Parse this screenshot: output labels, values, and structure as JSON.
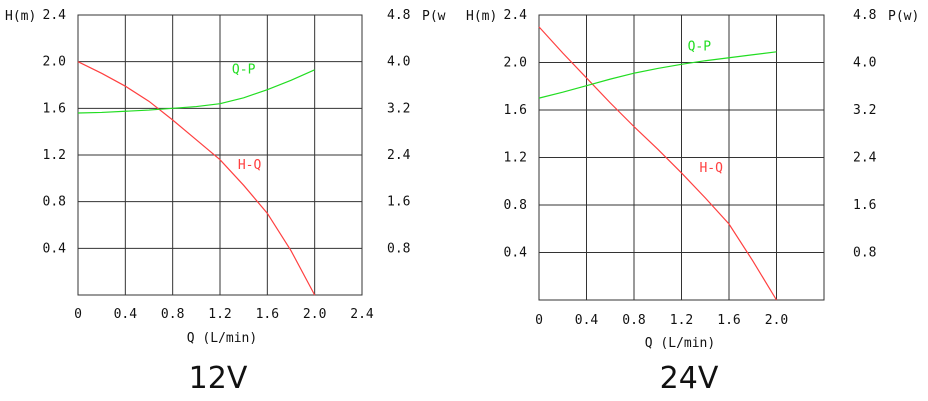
{
  "chart_data": [
    {
      "type": "line",
      "caption": "12V",
      "ylabel_left": "H(m)",
      "ylabel_right": "P(w",
      "xlabel": "Q (L/min)",
      "xlim": [
        0,
        2.4
      ],
      "ylim_left": [
        0,
        2.4
      ],
      "ylim_right": [
        0,
        4.8
      ],
      "x_ticks": [
        "0",
        "0.4",
        "0.8",
        "1.2",
        "1.6",
        "2.0",
        "2.4"
      ],
      "y_left_ticks": [
        "0.4",
        "0.8",
        "1.2",
        "1.6",
        "2.0",
        "2.4"
      ],
      "y_right_ticks": [
        "0.8",
        "1.6",
        "2.4",
        "3.2",
        "4.0",
        "4.8"
      ],
      "grid": true,
      "series": [
        {
          "name": "H-Q",
          "axis": "left",
          "color": "#ff4040",
          "x": [
            0,
            0.2,
            0.4,
            0.6,
            0.8,
            1.0,
            1.2,
            1.4,
            1.6,
            1.8,
            2.0
          ],
          "y": [
            2.0,
            1.9,
            1.79,
            1.66,
            1.5,
            1.33,
            1.16,
            0.94,
            0.7,
            0.38,
            0.0
          ]
        },
        {
          "name": "Q-P",
          "axis": "right",
          "color": "#22dd22",
          "x": [
            0,
            0.2,
            0.4,
            0.6,
            0.8,
            1.0,
            1.2,
            1.4,
            1.6,
            1.8,
            2.0
          ],
          "y": [
            3.12,
            3.13,
            3.15,
            3.17,
            3.2,
            3.23,
            3.28,
            3.38,
            3.52,
            3.68,
            3.86
          ]
        }
      ]
    },
    {
      "type": "line",
      "caption": "24V",
      "ylabel_left": "H(m)",
      "ylabel_right": "P(w)",
      "xlabel": "Q (L/min)",
      "xlim": [
        0,
        2.4
      ],
      "ylim_left": [
        0,
        2.4
      ],
      "ylim_right": [
        0,
        4.8
      ],
      "x_ticks": [
        "0",
        "0.4",
        "0.8",
        "1.2",
        "1.6",
        "2.0"
      ],
      "y_left_ticks": [
        "0.4",
        "0.8",
        "1.2",
        "1.6",
        "2.0",
        "2.4"
      ],
      "y_right_ticks": [
        "0.8",
        "1.6",
        "2.4",
        "3.2",
        "4.0",
        "4.8"
      ],
      "grid": true,
      "series": [
        {
          "name": "H-Q",
          "axis": "left",
          "color": "#ff4040",
          "x": [
            0,
            0.2,
            0.4,
            0.6,
            0.8,
            1.0,
            1.2,
            1.4,
            1.6,
            1.8,
            2.0
          ],
          "y": [
            2.3,
            2.08,
            1.87,
            1.66,
            1.46,
            1.27,
            1.07,
            0.86,
            0.64,
            0.33,
            0.0
          ]
        },
        {
          "name": "Q-P",
          "axis": "right",
          "color": "#22dd22",
          "x": [
            0,
            0.2,
            0.4,
            0.6,
            0.8,
            1.0,
            1.2,
            1.4,
            1.6,
            1.8,
            2.0
          ],
          "y": [
            3.4,
            3.5,
            3.61,
            3.72,
            3.82,
            3.9,
            3.97,
            4.03,
            4.08,
            4.13,
            4.18
          ]
        }
      ]
    }
  ]
}
